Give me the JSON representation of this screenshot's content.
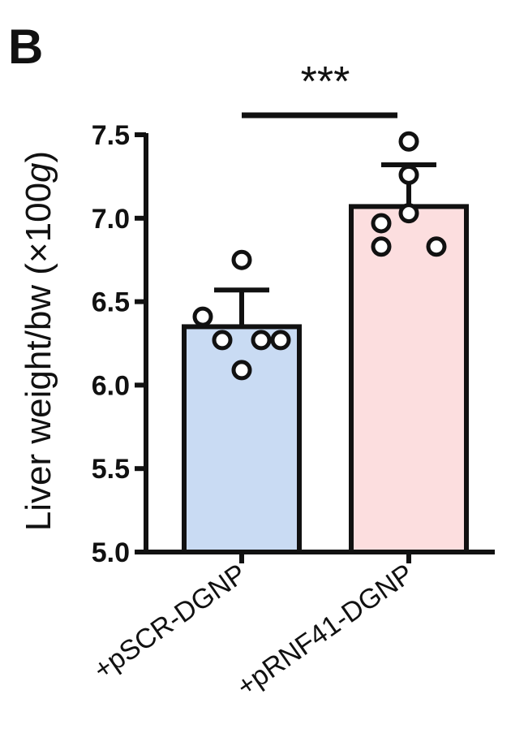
{
  "panel_label": "B",
  "chart_data": {
    "type": "bar",
    "categories": [
      "+pSCR-DGNP",
      "+pRNF41-DGNP"
    ],
    "values": [
      6.35,
      7.07
    ],
    "error": [
      0.22,
      0.25
    ],
    "points": [
      [
        6.75,
        6.41,
        6.27,
        6.27,
        6.27,
        6.09
      ],
      [
        7.46,
        7.26,
        7.03,
        6.97,
        6.83,
        6.83
      ]
    ],
    "colors": [
      "#c9dbf3",
      "#fcdedf"
    ],
    "ylabel": "Liver weight/bw (×100g)",
    "ylabel_parts": {
      "main": "Liver weight/bw (×100",
      "unit": "g",
      "close": ")"
    },
    "ylim": [
      5.0,
      7.5
    ],
    "yticks": [
      "5.0",
      "5.5",
      "6.0",
      "6.5",
      "7.0",
      "7.5"
    ],
    "significance": {
      "label": "***",
      "between": [
        0,
        1
      ]
    },
    "grid": false
  }
}
